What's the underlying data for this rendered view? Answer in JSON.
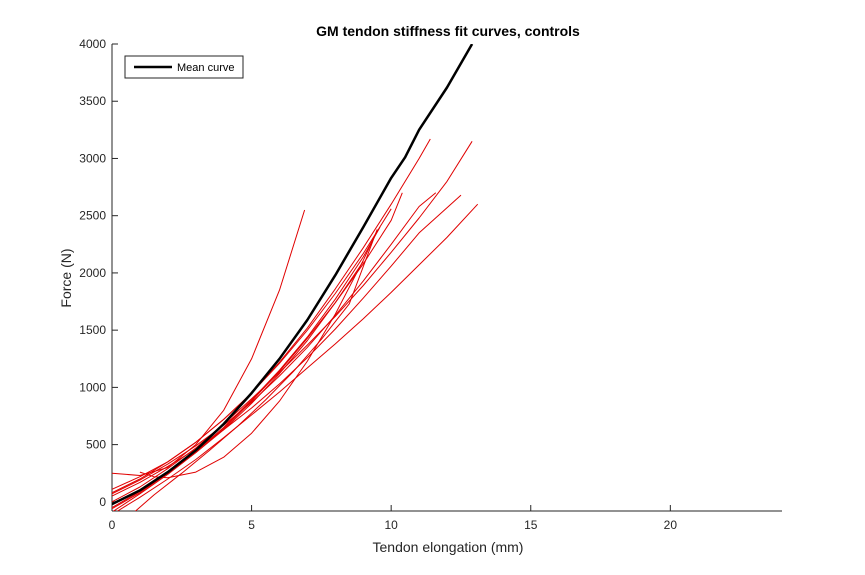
{
  "chart_data": {
    "type": "line",
    "title": "GM tendon stiffness fit curves, controls",
    "xlabel": "Tendon elongation (mm)",
    "ylabel": "Force (N)",
    "xlim": [
      0,
      24
    ],
    "ylim": [
      -80,
      4000
    ],
    "xticks": [
      0,
      5,
      10,
      15,
      20
    ],
    "yticks": [
      0,
      500,
      1000,
      1500,
      2000,
      2500,
      3000,
      3500,
      4000
    ],
    "grid": false,
    "legend": {
      "placement": "top-left",
      "entries": [
        "Mean curve"
      ]
    },
    "colors": {
      "mean": "#000000",
      "individual": "#e00000",
      "axis": "#262626"
    },
    "mean_curve": {
      "name": "Mean curve",
      "x": [
        0,
        1,
        2,
        3,
        4,
        5,
        6,
        7,
        8,
        9,
        10,
        10.5,
        11,
        12,
        12.9
      ],
      "y": [
        -20,
        100,
        260,
        450,
        680,
        950,
        1250,
        1590,
        1980,
        2400,
        2830,
        3010,
        3250,
        3620,
        4000
      ]
    },
    "individual_curves": [
      {
        "x": [
          0,
          1,
          2,
          3,
          4,
          5,
          6,
          6.9
        ],
        "y": [
          250,
          230,
          300,
          500,
          800,
          1250,
          1850,
          2550
        ]
      },
      {
        "x": [
          0,
          1,
          2,
          3,
          4,
          5,
          6,
          7,
          8,
          9,
          10,
          11,
          11.4
        ],
        "y": [
          110,
          220,
          350,
          520,
          720,
          950,
          1220,
          1520,
          1860,
          2220,
          2600,
          3000,
          3170
        ]
      },
      {
        "x": [
          0,
          1,
          2,
          3,
          4,
          5,
          6,
          7,
          8,
          9,
          10,
          11,
          12,
          12.9
        ],
        "y": [
          0,
          130,
          290,
          470,
          680,
          900,
          1130,
          1370,
          1620,
          1890,
          2180,
          2480,
          2800,
          3150
        ]
      },
      {
        "x": [
          0,
          1,
          2,
          3,
          4,
          5,
          6,
          7,
          8,
          9,
          10,
          10.4
        ],
        "y": [
          -90,
          70,
          240,
          430,
          640,
          880,
          1140,
          1430,
          1740,
          2080,
          2460,
          2700
        ]
      },
      {
        "x": [
          0.2,
          1,
          2,
          3,
          4,
          5,
          6,
          7,
          8,
          9,
          10,
          11,
          12,
          13.1
        ],
        "y": [
          -80,
          40,
          200,
          370,
          560,
          760,
          960,
          1170,
          1380,
          1600,
          1830,
          2070,
          2310,
          2600
        ]
      },
      {
        "x": [
          0,
          1,
          2,
          3,
          4,
          5,
          6,
          7,
          8,
          9,
          10,
          11,
          11.6
        ],
        "y": [
          70,
          190,
          330,
          490,
          670,
          870,
          1100,
          1350,
          1630,
          1930,
          2250,
          2580,
          2700
        ]
      },
      {
        "x": [
          0,
          1,
          2,
          3,
          4,
          5,
          6,
          7,
          8,
          9,
          10,
          11,
          12,
          12.5
        ],
        "y": [
          50,
          170,
          310,
          460,
          630,
          820,
          1030,
          1260,
          1510,
          1780,
          2060,
          2350,
          2570,
          2680
        ]
      },
      {
        "x": [
          0.8,
          1.5,
          2.5,
          3.5,
          4.5,
          5.5,
          6.5,
          7.5,
          8.5,
          9.5
        ],
        "y": [
          -90,
          60,
          250,
          450,
          660,
          890,
          1140,
          1420,
          1730,
          2380
        ]
      },
      {
        "x": [
          0,
          1,
          2,
          3,
          4,
          5,
          6,
          7,
          8,
          9,
          9.6
        ],
        "y": [
          -60,
          80,
          250,
          440,
          650,
          890,
          1150,
          1440,
          1770,
          2140,
          2400
        ]
      },
      {
        "x": [
          0,
          1,
          2,
          3,
          4,
          5,
          6,
          7,
          8,
          9,
          10
        ],
        "y": [
          80,
          200,
          350,
          520,
          720,
          950,
          1210,
          1500,
          1820,
          2170,
          2560
        ]
      },
      {
        "x": [
          0,
          1,
          2,
          3,
          4,
          5,
          6,
          7,
          8,
          9
        ],
        "y": [
          -50,
          90,
          250,
          430,
          630,
          860,
          1120,
          1410,
          1740,
          2100
        ]
      },
      {
        "x": [
          1,
          1.5,
          2,
          3,
          4,
          5,
          6,
          7,
          8,
          9,
          9.5
        ],
        "y": [
          260,
          220,
          210,
          260,
          390,
          600,
          880,
          1230,
          1640,
          2110,
          2370
        ]
      }
    ]
  }
}
